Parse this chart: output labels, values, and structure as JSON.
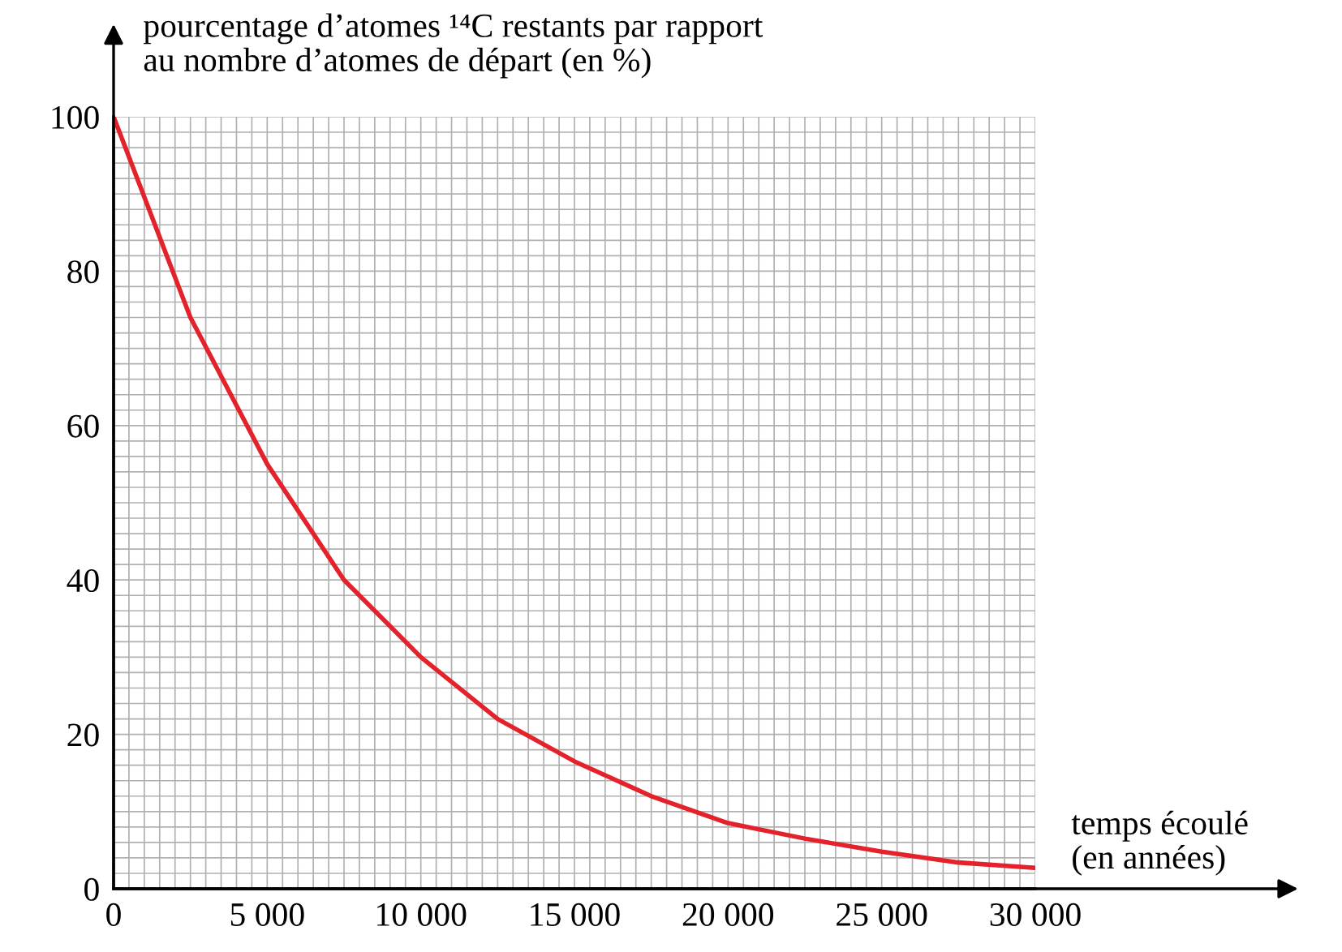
{
  "chart_data": {
    "type": "line",
    "xlabel": "temps écoulé\n(en années)",
    "ylabel": "pourcentage d’atomes ¹⁴C restants par rapport\nau nombre d’atomes de départ (en %)",
    "x": [
      0,
      2500,
      5000,
      7500,
      10000,
      12500,
      15000,
      17500,
      20000,
      22500,
      25000,
      27500,
      30000
    ],
    "series": [
      {
        "color": "#e3222b",
        "values": [
          100,
          74,
          55,
          40,
          30,
          22,
          16.5,
          12,
          8.5,
          6.5,
          4.8,
          3.4,
          2.7
        ]
      }
    ],
    "xlim": [
      0,
      30000
    ],
    "ylim": [
      0,
      100
    ],
    "xticks": [
      0,
      {
        "value": 5000,
        "label": "5 000"
      },
      {
        "value": 10000,
        "label": "10 000"
      },
      {
        "value": 15000,
        "label": "15 000"
      },
      {
        "value": 20000,
        "label": "20 000"
      },
      {
        "value": 25000,
        "label": "25 000"
      },
      {
        "value": 30000,
        "label": "30 000"
      }
    ],
    "yticks": [
      0,
      20,
      40,
      60,
      80,
      100
    ],
    "grid": true,
    "marker": "none",
    "line_style": "solid"
  }
}
